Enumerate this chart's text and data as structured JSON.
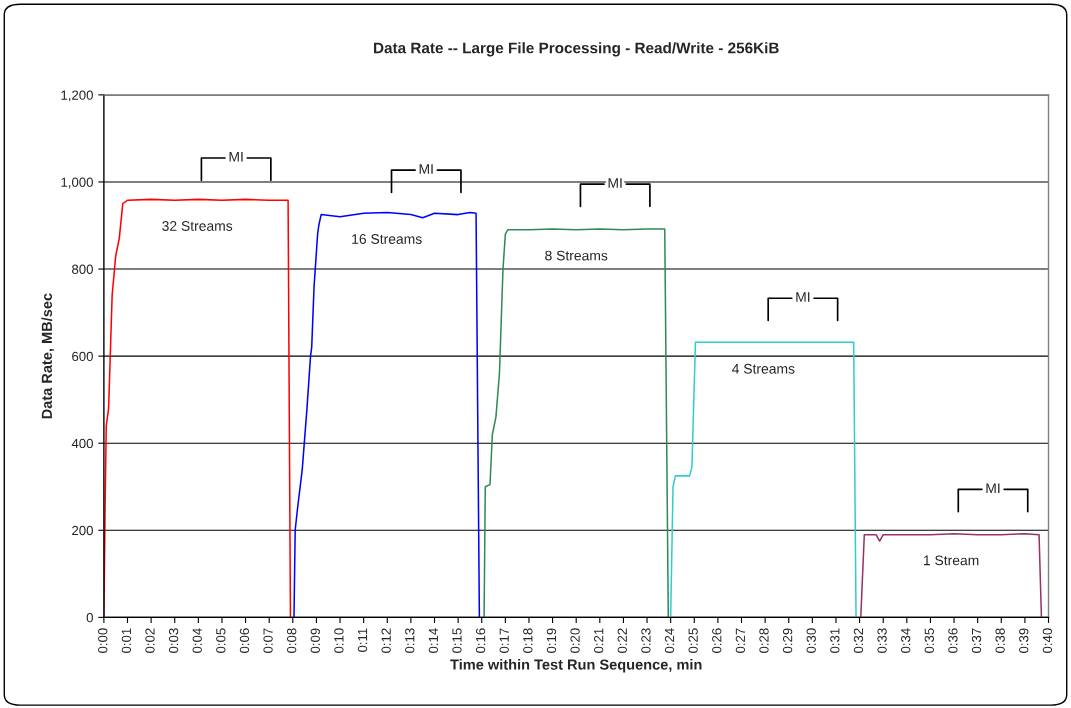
{
  "chart_data": {
    "type": "line",
    "title": "Data Rate -- Large File Processing - Read/Write - 256KiB",
    "xlabel": "Time within Test Run Sequence, min",
    "ylabel": "Data Rate, MB/sec",
    "xlim": [
      0,
      40
    ],
    "ylim": [
      0,
      1200
    ],
    "xticks": [
      {
        "value": 0,
        "label": "0:00"
      },
      {
        "value": 1,
        "label": "0:01"
      },
      {
        "value": 2,
        "label": "0:02"
      },
      {
        "value": 3,
        "label": "0:03"
      },
      {
        "value": 4,
        "label": "0:04"
      },
      {
        "value": 5,
        "label": "0:05"
      },
      {
        "value": 6,
        "label": "0:06"
      },
      {
        "value": 7,
        "label": "0:07"
      },
      {
        "value": 8,
        "label": "0:08"
      },
      {
        "value": 9,
        "label": "0:09"
      },
      {
        "value": 10,
        "label": "0:10"
      },
      {
        "value": 11,
        "label": "0:11"
      },
      {
        "value": 12,
        "label": "0:12"
      },
      {
        "value": 13,
        "label": "0:13"
      },
      {
        "value": 14,
        "label": "0:14"
      },
      {
        "value": 15,
        "label": "0:15"
      },
      {
        "value": 16,
        "label": "0:16"
      },
      {
        "value": 17,
        "label": "0:17"
      },
      {
        "value": 18,
        "label": "0:18"
      },
      {
        "value": 19,
        "label": "0:19"
      },
      {
        "value": 20,
        "label": "0:20"
      },
      {
        "value": 21,
        "label": "0:21"
      },
      {
        "value": 22,
        "label": "0:22"
      },
      {
        "value": 23,
        "label": "0:23"
      },
      {
        "value": 24,
        "label": "0:24"
      },
      {
        "value": 25,
        "label": "0:25"
      },
      {
        "value": 26,
        "label": "0:26"
      },
      {
        "value": 27,
        "label": "0:27"
      },
      {
        "value": 28,
        "label": "0:28"
      },
      {
        "value": 29,
        "label": "0:29"
      },
      {
        "value": 30,
        "label": "0:30"
      },
      {
        "value": 31,
        "label": "0:31"
      },
      {
        "value": 32,
        "label": "0:32"
      },
      {
        "value": 33,
        "label": "0:33"
      },
      {
        "value": 34,
        "label": "0:34"
      },
      {
        "value": 35,
        "label": "0:35"
      },
      {
        "value": 36,
        "label": "0:36"
      },
      {
        "value": 37,
        "label": "0:37"
      },
      {
        "value": 38,
        "label": "0:38"
      },
      {
        "value": 39,
        "label": "0:39"
      },
      {
        "value": 40,
        "label": "0:40"
      }
    ],
    "yticks": [
      0,
      200,
      400,
      600,
      800,
      {
        "value": 1000,
        "label": "1,000"
      },
      {
        "value": 1200,
        "label": "1,200"
      }
    ],
    "grid": "y",
    "marker": "none",
    "line_style": "solid",
    "series": [
      {
        "name": "32 Streams",
        "color": "#ff0000",
        "x": [
          0,
          0.05,
          0.1,
          0.2,
          0.35,
          0.5,
          0.65,
          0.8,
          1.0,
          2.0,
          3.0,
          4.0,
          5.0,
          6.0,
          7.0,
          7.8,
          7.9
        ],
        "values": [
          0,
          250,
          440,
          480,
          740,
          830,
          870,
          950,
          958,
          960,
          958,
          960,
          958,
          960,
          958,
          958,
          0
        ]
      },
      {
        "name": "16 Streams",
        "color": "#0000ff",
        "x": [
          8.05,
          8.1,
          8.2,
          8.4,
          8.6,
          8.75,
          8.8,
          8.9,
          9.05,
          9.1,
          9.2,
          10.0,
          11.0,
          12.0,
          13.0,
          13.5,
          14.0,
          15.0,
          15.5,
          15.76,
          15.9
        ],
        "values": [
          0,
          200,
          250,
          340,
          480,
          600,
          620,
          760,
          880,
          900,
          925,
          920,
          928,
          930,
          925,
          918,
          928,
          925,
          930,
          928,
          0
        ]
      },
      {
        "name": "8 Streams",
        "color": "#2e8b57",
        "x": [
          16.1,
          16.15,
          16.35,
          16.45,
          16.6,
          16.75,
          16.9,
          17.0,
          17.1,
          18.0,
          19.0,
          20.0,
          21.0,
          22.0,
          23.0,
          23.75,
          23.9
        ],
        "values": [
          0,
          300,
          305,
          420,
          460,
          560,
          800,
          880,
          890,
          890,
          892,
          890,
          892,
          890,
          892,
          892,
          0
        ]
      },
      {
        "name": "4 Streams",
        "color": "#33cccc",
        "x": [
          24.0,
          24.1,
          24.2,
          24.8,
          24.9,
          25.05,
          26.0,
          27.0,
          28.0,
          29.0,
          30.0,
          31.0,
          31.75,
          31.85
        ],
        "values": [
          0,
          300,
          325,
          325,
          345,
          632,
          632,
          632,
          632,
          632,
          632,
          632,
          632,
          0
        ]
      },
      {
        "name": "1 Stream",
        "color": "#993366",
        "x": [
          32.05,
          32.2,
          32.7,
          32.85,
          33.0,
          34.0,
          35.0,
          36.0,
          37.0,
          38.0,
          39.0,
          39.6,
          39.7
        ],
        "values": [
          0,
          190,
          190,
          175,
          190,
          190,
          190,
          192,
          190,
          190,
          192,
          190,
          0
        ]
      }
    ],
    "annotations": [
      {
        "text": "MI",
        "x": 5.6,
        "y": 1055
      },
      {
        "text": "MI",
        "x": 13.65,
        "y": 1027
      },
      {
        "text": "MI",
        "x": 21.65,
        "y": 995
      },
      {
        "text": "MI",
        "x": 29.6,
        "y": 733
      },
      {
        "text": "MI",
        "x": 37.65,
        "y": 294
      }
    ]
  }
}
